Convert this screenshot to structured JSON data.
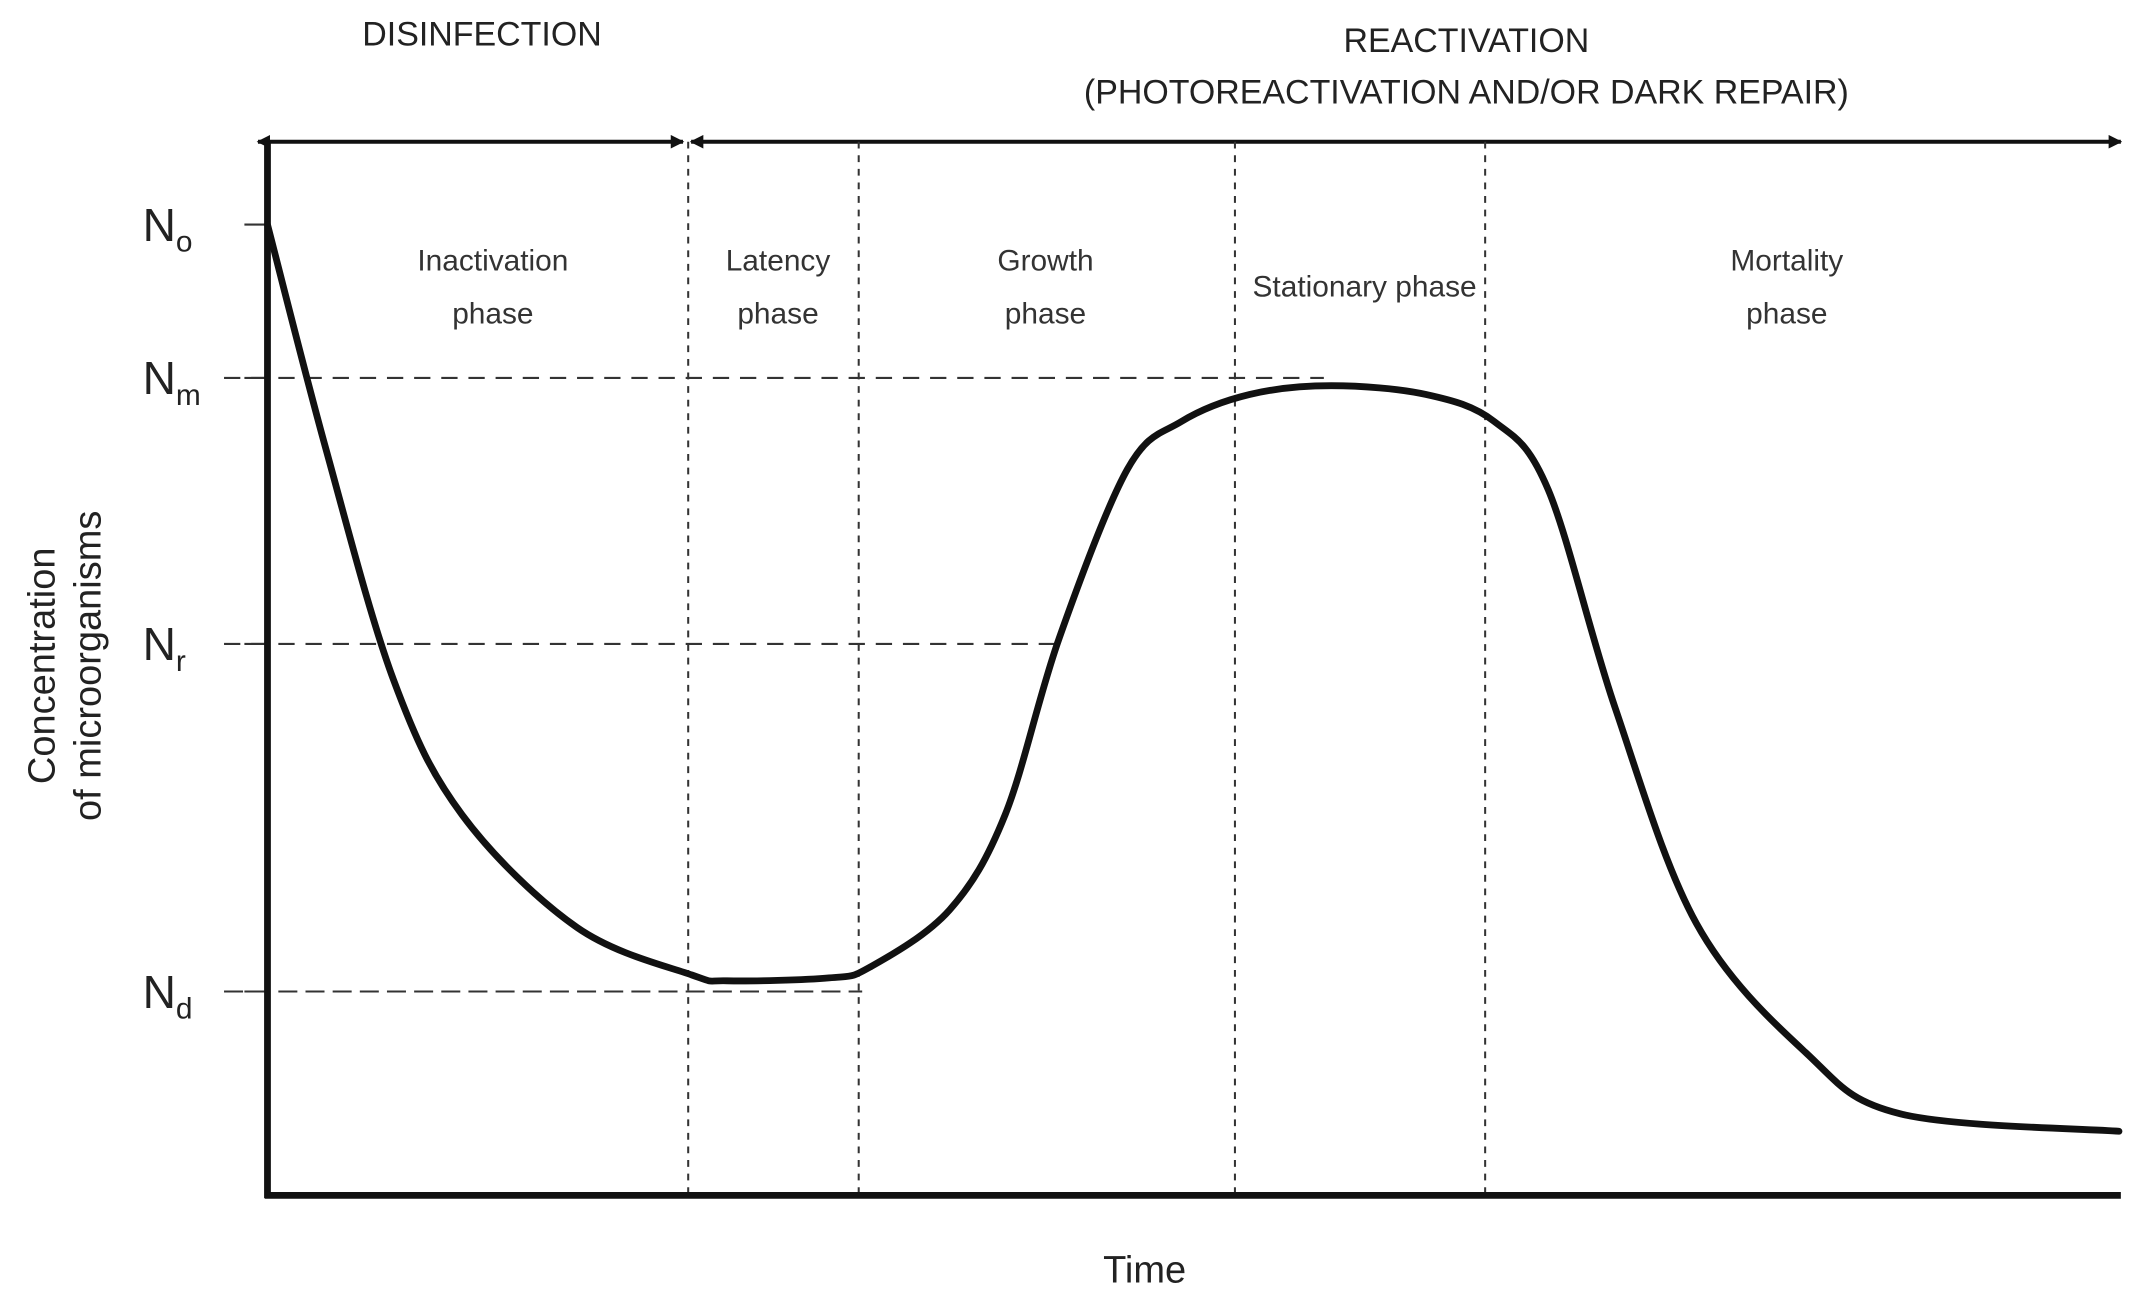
{
  "header": {
    "disinfection": "DISINFECTION",
    "reactivation": "REACTIVATION",
    "reactivation_sub": "(PHOTOREACTIVATION AND/OR DARK REPAIR)"
  },
  "chart_data": {
    "type": "line",
    "title": "",
    "xlabel": "Time",
    "ylabel_line1": "Concentration",
    "ylabel_line2": "of microorganisms",
    "xlim": [
      0,
      100
    ],
    "ylim": [
      0,
      100
    ],
    "y_levels": [
      {
        "main": "N",
        "sub": "o",
        "value": 100
      },
      {
        "main": "N",
        "sub": "m",
        "value": 84.2
      },
      {
        "main": "N",
        "sub": "r",
        "value": 56.8
      },
      {
        "main": "N",
        "sub": "d",
        "value": 21
      }
    ],
    "phase_boundaries": [
      22.7,
      31.9,
      52.2,
      65.7
    ],
    "phases": [
      {
        "line1": "Inactivation",
        "line2": "phase"
      },
      {
        "line1": "Latency",
        "line2": "phase"
      },
      {
        "line1": "Growth",
        "line2": "phase"
      },
      {
        "line1": "Stationary phase",
        "line2": ""
      },
      {
        "line1": "Mortality",
        "line2": "phase"
      }
    ],
    "series": [
      {
        "name": "Concentration",
        "x": [
          0,
          3.15,
          6.8,
          10.5,
          16.7,
          22.9,
          24.8,
          30.3,
          32.5,
          36.8,
          39.8,
          42.7,
          46.4,
          49.3,
          53,
          57.4,
          62.5,
          66.2,
          69.1,
          72.7,
          77.1,
          83,
          88.1,
          99.9
        ],
        "y": [
          100,
          76.9,
          53.1,
          39.2,
          27.6,
          22.7,
          22.1,
          22.4,
          23.5,
          29.4,
          39.2,
          57.3,
          74.8,
          79.7,
          82.5,
          83.4,
          82.5,
          79.7,
          72.7,
          50.3,
          28,
          14.7,
          8.4,
          6.6
        ]
      }
    ],
    "grid": false
  }
}
